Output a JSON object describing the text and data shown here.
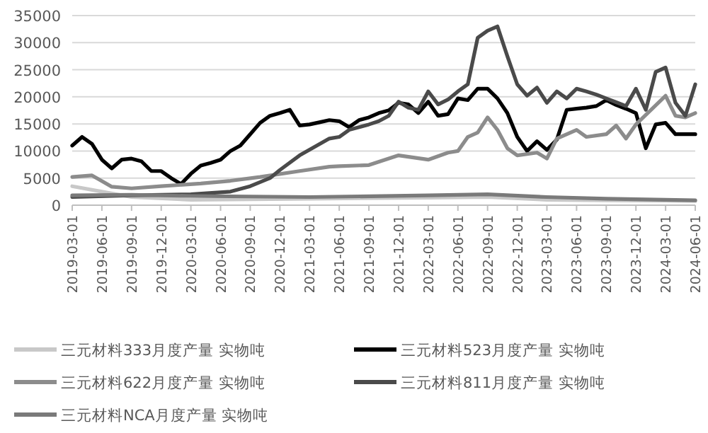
{
  "chart_data": {
    "type": "line",
    "ylim": [
      0,
      35000
    ],
    "yticks": [
      0,
      5000,
      10000,
      15000,
      20000,
      25000,
      30000,
      35000
    ],
    "xlim": [
      "2019-03-01",
      "2024-06-01"
    ],
    "xticks": [
      "2019-03-01",
      "2019-06-01",
      "2019-09-01",
      "2019-12-01",
      "2020-03-01",
      "2020-06-01",
      "2020-09-01",
      "2020-12-01",
      "2021-03-01",
      "2021-06-01",
      "2021-09-01",
      "2021-12-01",
      "2022-03-01",
      "2022-06-01",
      "2022-09-01",
      "2022-12-01",
      "2023-03-01",
      "2023-06-01",
      "2023-09-01",
      "2023-12-01",
      "2024-03-01",
      "2024-06-01"
    ],
    "grid": "y",
    "legend": "bottom",
    "marker": "none",
    "line_style": "solid",
    "series": [
      {
        "name": "三元材料333月度产量 实物吨",
        "color": "#c8c8c8",
        "x": [
          "2019-03",
          "2019-06",
          "2019-09",
          "2020-03",
          "2021-03",
          "2022-03",
          "2022-09",
          "2023-03",
          "2023-09",
          "2024-06"
        ],
        "values": [
          3500,
          2500,
          1500,
          1000,
          1200,
          1400,
          1500,
          1000,
          900,
          800
        ]
      },
      {
        "name": "三元材料523月度产量 实物吨",
        "color": "#000000",
        "x": [
          "2019-03",
          "2019-04",
          "2019-05",
          "2019-06",
          "2019-07",
          "2019-08",
          "2019-09",
          "2019-10",
          "2019-11",
          "2019-12",
          "2020-01",
          "2020-02",
          "2020-03",
          "2020-04",
          "2020-05",
          "2020-06",
          "2020-07",
          "2020-08",
          "2020-09",
          "2020-10",
          "2020-11",
          "2020-12",
          "2021-01",
          "2021-02",
          "2021-03",
          "2021-04",
          "2021-05",
          "2021-06",
          "2021-07",
          "2021-08",
          "2021-09",
          "2021-10",
          "2021-11",
          "2021-12",
          "2022-01",
          "2022-02",
          "2022-03",
          "2022-04",
          "2022-05",
          "2022-06",
          "2022-07",
          "2022-08",
          "2022-09",
          "2022-10",
          "2022-11",
          "2022-12",
          "2023-01",
          "2023-02",
          "2023-03",
          "2023-04",
          "2023-05",
          "2023-06",
          "2023-07",
          "2023-08",
          "2023-09",
          "2023-10",
          "2023-11",
          "2023-12",
          "2024-01",
          "2024-02",
          "2024-03",
          "2024-04",
          "2024-05",
          "2024-06"
        ],
        "values": [
          11000,
          12600,
          11300,
          8400,
          6800,
          8400,
          8600,
          8100,
          6300,
          6300,
          5000,
          3900,
          5800,
          7300,
          7800,
          8400,
          10000,
          11000,
          13100,
          15200,
          16500,
          17000,
          17600,
          14700,
          14900,
          15300,
          15700,
          15500,
          14400,
          15700,
          16200,
          17000,
          17500,
          18900,
          18600,
          17000,
          19100,
          16500,
          16800,
          19700,
          19400,
          21500,
          21500,
          19700,
          17000,
          12600,
          10000,
          11800,
          10200,
          12100,
          17600,
          17800,
          18000,
          18300,
          19400,
          18500,
          17800,
          17000,
          10500,
          14900,
          15200,
          13100,
          13100,
          13100
        ]
      },
      {
        "name": "三元材料622月度产量 实物吨",
        "color": "#8c8c8c",
        "x": [
          "2019-03",
          "2019-05",
          "2019-07",
          "2019-09",
          "2019-12",
          "2020-04",
          "2020-07",
          "2020-10",
          "2021-02",
          "2021-05",
          "2021-06",
          "2021-09",
          "2021-12",
          "2022-03",
          "2022-05",
          "2022-06",
          "2022-07",
          "2022-08",
          "2022-09",
          "2022-10",
          "2022-11",
          "2022-12",
          "2023-02",
          "2023-03",
          "2023-04",
          "2023-06",
          "2023-07",
          "2023-09",
          "2023-10",
          "2023-11",
          "2023-12",
          "2024-03",
          "2024-04",
          "2024-05",
          "2024-06"
        ],
        "values": [
          5200,
          5500,
          3400,
          3100,
          3500,
          4000,
          4500,
          5200,
          6300,
          7100,
          7200,
          7400,
          9200,
          8400,
          9700,
          10000,
          12600,
          13400,
          16200,
          13900,
          10500,
          9200,
          9700,
          8600,
          12300,
          13900,
          12600,
          13100,
          14700,
          12300,
          14900,
          20200,
          16500,
          16200,
          17000
        ]
      },
      {
        "name": "三元材料811月度产量 实物吨",
        "color": "#4a4a4a",
        "x": [
          "2019-03",
          "2019-09",
          "2020-03",
          "2020-07",
          "2020-09",
          "2020-11",
          "2020-12",
          "2021-02",
          "2021-05",
          "2021-06",
          "2021-07",
          "2021-08",
          "2021-09",
          "2021-10",
          "2021-11",
          "2021-12",
          "2022-01",
          "2022-02",
          "2022-03",
          "2022-04",
          "2022-05",
          "2022-06",
          "2022-07",
          "2022-08",
          "2022-09",
          "2022-10",
          "2022-11",
          "2022-12",
          "2023-01",
          "2023-02",
          "2023-03",
          "2023-04",
          "2023-05",
          "2023-06",
          "2023-07",
          "2023-08",
          "2023-09",
          "2023-10",
          "2023-11",
          "2023-12",
          "2024-01",
          "2024-02",
          "2024-03",
          "2024-04",
          "2024-05",
          "2024-06"
        ],
        "values": [
          1500,
          1800,
          2000,
          2500,
          3500,
          5000,
          6500,
          9200,
          12300,
          12600,
          13900,
          14400,
          14900,
          15500,
          16500,
          19100,
          18000,
          17600,
          21000,
          18600,
          19500,
          21000,
          22300,
          30900,
          32200,
          33000,
          27500,
          22300,
          20200,
          21700,
          18900,
          21000,
          19700,
          21500,
          21000,
          20400,
          19700,
          19000,
          18300,
          21500,
          17600,
          24600,
          25400,
          18900,
          16500,
          22300
        ]
      },
      {
        "name": "三元材料NCA月度产量 实物吨",
        "color": "#7a7a7a",
        "x": [
          "2019-03",
          "2019-09",
          "2020-03",
          "2021-03",
          "2022-03",
          "2022-09",
          "2023-03",
          "2023-09",
          "2024-06"
        ],
        "values": [
          1800,
          1900,
          1700,
          1500,
          1800,
          2000,
          1500,
          1200,
          900
        ]
      }
    ]
  }
}
